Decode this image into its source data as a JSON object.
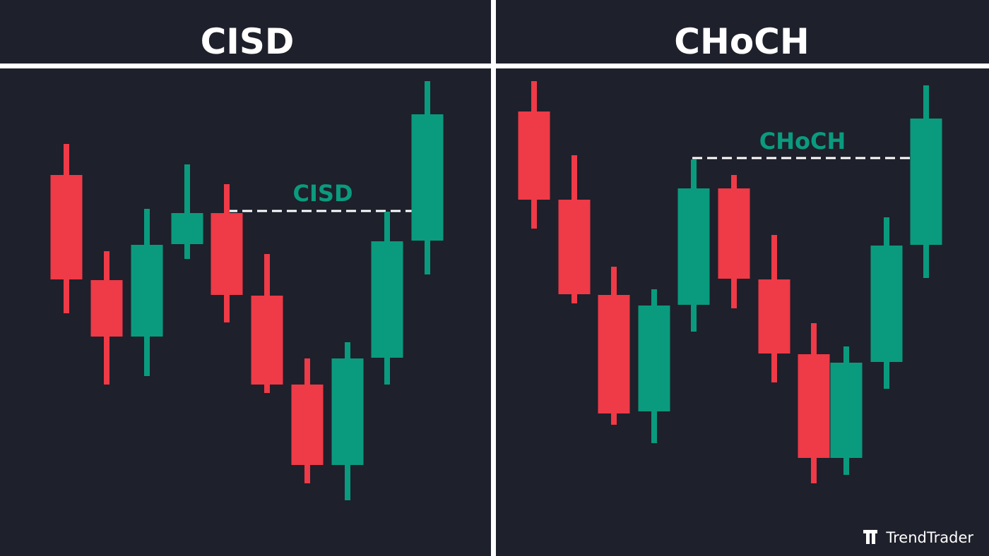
{
  "panels": [
    {
      "title": "CISD",
      "annotation": "CISD"
    },
    {
      "title": "CHoCH",
      "annotation": "CHoCH"
    }
  ],
  "brand": "TrendTrader"
}
